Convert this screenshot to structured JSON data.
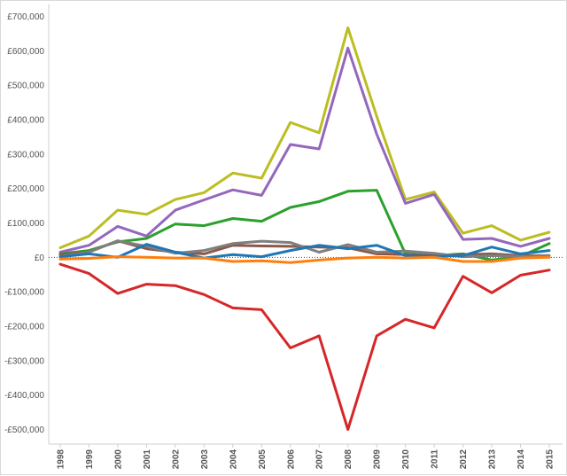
{
  "chart_data": {
    "type": "line",
    "title": "",
    "xlabel": "",
    "ylabel": "",
    "ylim": [
      -560000,
      720000
    ],
    "yticks": [
      {
        "value": 700000,
        "label": "£700,000"
      },
      {
        "value": 600000,
        "label": "£600,000"
      },
      {
        "value": 500000,
        "label": "£500,000"
      },
      {
        "value": 400000,
        "label": "£400,000"
      },
      {
        "value": 300000,
        "label": "£300,000"
      },
      {
        "value": 200000,
        "label": "£200,000"
      },
      {
        "value": 100000,
        "label": "£100,000"
      },
      {
        "value": 0,
        "label": "£0"
      },
      {
        "value": -100000,
        "label": "-£100,000"
      },
      {
        "value": -200000,
        "label": "-£200,000"
      },
      {
        "value": -300000,
        "label": "-£300,000"
      },
      {
        "value": -400000,
        "label": "-£400,000"
      },
      {
        "value": -500000,
        "label": "-£500,000"
      }
    ],
    "categories": [
      "1998",
      "1999",
      "2000",
      "2001",
      "2002",
      "2003",
      "2004",
      "2005",
      "2006",
      "2007",
      "2008",
      "2009",
      "2010",
      "2011",
      "2012",
      "2013",
      "2014",
      "2015"
    ],
    "series": [
      {
        "name": "olive",
        "color": "#bcbd22",
        "values": [
          28000,
          62000,
          137000,
          125000,
          168000,
          188000,
          245000,
          230000,
          392000,
          362000,
          667000,
          410000,
          168000,
          190000,
          70000,
          92000,
          50000,
          73000
        ]
      },
      {
        "name": "purple",
        "color": "#9467bd",
        "values": [
          15000,
          35000,
          90000,
          62000,
          137000,
          167000,
          196000,
          180000,
          328000,
          315000,
          608000,
          358000,
          157000,
          183000,
          52000,
          55000,
          32000,
          55000
        ]
      },
      {
        "name": "green",
        "color": "#2ca02c",
        "values": [
          10000,
          20000,
          45000,
          55000,
          97000,
          92000,
          113000,
          105000,
          145000,
          162000,
          192000,
          195000,
          10000,
          5000,
          10000,
          -8000,
          3000,
          40000
        ]
      },
      {
        "name": "brown",
        "color": "#8c564b",
        "values": [
          8000,
          16000,
          48000,
          25000,
          15000,
          10000,
          35000,
          33000,
          32000,
          30000,
          28000,
          10000,
          8000,
          5000,
          8000,
          10000,
          5000,
          5000
        ]
      },
      {
        "name": "gray",
        "color": "#7f7f7f",
        "values": [
          3000,
          15000,
          48000,
          32000,
          12000,
          20000,
          40000,
          47000,
          43000,
          15000,
          37000,
          15000,
          18000,
          12000,
          2000,
          5000,
          3000,
          5000
        ]
      },
      {
        "name": "blue",
        "color": "#1f77b4",
        "values": [
          2000,
          10000,
          0,
          38000,
          15000,
          -2000,
          8000,
          2000,
          20000,
          35000,
          25000,
          35000,
          5000,
          3000,
          5000,
          30000,
          10000,
          20000
        ]
      },
      {
        "name": "orange",
        "color": "#ff7f0e",
        "values": [
          -5000,
          -3000,
          2000,
          0,
          -2000,
          -2000,
          -12000,
          -10000,
          -15000,
          -8000,
          -2000,
          0,
          -2000,
          0,
          -12000,
          -12000,
          -2000,
          0
        ]
      },
      {
        "name": "red",
        "color": "#d62728",
        "values": [
          -20000,
          -47000,
          -105000,
          -78000,
          -82000,
          -108000,
          -147000,
          -152000,
          -263000,
          -228000,
          -500000,
          -228000,
          -180000,
          -205000,
          -55000,
          -103000,
          -52000,
          -37000
        ]
      }
    ]
  }
}
